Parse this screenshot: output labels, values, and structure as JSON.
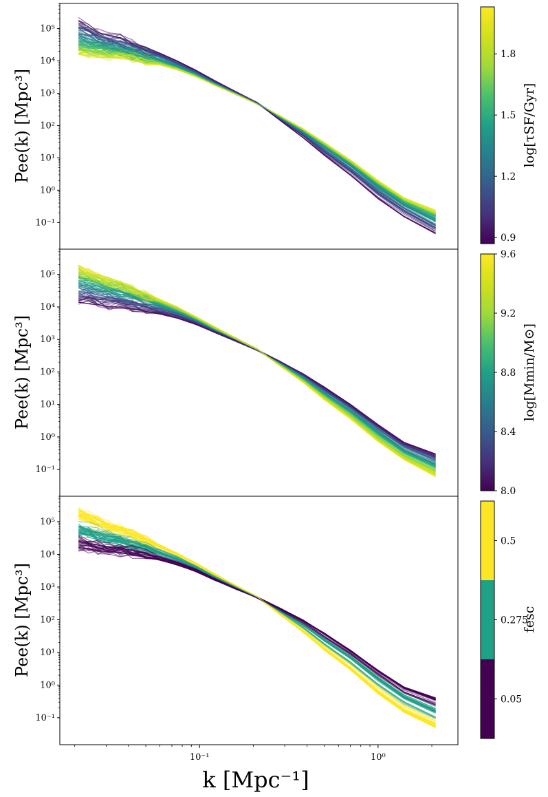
{
  "chart_data": {
    "type": "line",
    "x_axis": {
      "label": "k [Mpc⁻¹]",
      "scale": "log",
      "lim": [
        0.0165,
        2.8
      ],
      "ticks": [
        {
          "value": 0.1,
          "label": "10⁻¹"
        },
        {
          "value": 1.0,
          "label": "10⁰"
        }
      ]
    },
    "y_axis": {
      "label": "Pee(k) [Mpc³]",
      "scale": "log",
      "lim": [
        0.015,
        600000
      ],
      "ticks": [
        {
          "value": 0.1,
          "label": "10⁻¹"
        },
        {
          "value": 1,
          "label": "10⁰"
        },
        {
          "value": 10,
          "label": "10¹"
        },
        {
          "value": 100,
          "label": "10²"
        },
        {
          "value": 1000,
          "label": "10³"
        },
        {
          "value": 10000,
          "label": "10⁴"
        },
        {
          "value": 100000,
          "label": "10⁵"
        }
      ]
    },
    "k_values": [
      0.021,
      0.024,
      0.027,
      0.031,
      0.036,
      0.042,
      0.05,
      0.06,
      0.075,
      0.095,
      0.12,
      0.16,
      0.21,
      0.28,
      0.38,
      0.5,
      0.7,
      1.0,
      1.4,
      2.1
    ],
    "panels": [
      {
        "name": "tau-sf",
        "colorbar": {
          "label": "log[τSF/Gyr]",
          "type": "continuous",
          "range": [
            0.87,
            2.03
          ],
          "ticks": [
            {
              "value": 0.9,
              "label": "0.9"
            },
            {
              "value": 1.2,
              "label": "1.2"
            },
            {
              "value": 1.5,
              "label": "1.5"
            },
            {
              "value": 1.8,
              "label": "1.8"
            }
          ]
        },
        "series": [
          {
            "name": "logτSF=0.87",
            "cval": 0.87,
            "values": [
              180000,
              110000,
              75000,
              62000,
              52000,
              36000,
              26000,
              17000,
              9800,
              5100,
              2500,
              1100,
              510,
              150,
              42,
              12,
              2.9,
              0.55,
              0.15,
              0.045
            ]
          },
          {
            "name": "logτSF=1.10",
            "cval": 1.1,
            "values": [
              110000,
              80000,
              60000,
              48000,
              40000,
              29000,
              21000,
              14500,
              8700,
              4700,
              2350,
              1060,
              505,
              165,
              52,
              16,
              4.2,
              0.85,
              0.24,
              0.07
            ]
          },
          {
            "name": "logτSF=1.35",
            "cval": 1.35,
            "values": [
              60000,
              48000,
              40000,
              32000,
              27000,
              21000,
              16000,
              11500,
              7300,
              4100,
              2150,
              1010,
              495,
              180,
              62,
              21,
              5.8,
              1.25,
              0.35,
              0.11
            ]
          },
          {
            "name": "logτSF=1.55",
            "cval": 1.55,
            "values": [
              32000,
              29000,
              26000,
              22000,
              20000,
              16000,
              12500,
              9400,
              6300,
              3700,
              2000,
              970,
              485,
              190,
              70,
              25,
              7.2,
              1.6,
              0.45,
              0.16
            ]
          },
          {
            "name": "logτSF=1.80",
            "cval": 1.8,
            "values": [
              22000,
              20000,
              18500,
              16500,
              15500,
              13000,
              10500,
              8200,
              5700,
              3450,
              1900,
              950,
              480,
              195,
              74,
              27,
              7.8,
              1.75,
              0.5,
              0.19
            ]
          },
          {
            "name": "logτSF=2.00",
            "cval": 2.0,
            "values": [
              16000,
              15000,
              14000,
              12800,
              12500,
              11000,
              9300,
              7500,
              5400,
              3300,
              1850,
              940,
              478,
              205,
              80,
              30,
              8.6,
              2.0,
              0.58,
              0.24
            ]
          }
        ]
      },
      {
        "name": "m-min",
        "colorbar": {
          "label": "log[Mmin/M⊙]",
          "type": "continuous",
          "range": [
            8.0,
            9.6
          ],
          "ticks": [
            {
              "value": 8.0,
              "label": "8.0"
            },
            {
              "value": 8.4,
              "label": "8.4"
            },
            {
              "value": 8.8,
              "label": "8.8"
            },
            {
              "value": 9.2,
              "label": "9.2"
            },
            {
              "value": 9.6,
              "label": "9.6"
            }
          ]
        },
        "series": [
          {
            "name": "logMmin=8.0",
            "cval": 8.0,
            "values": [
              14000,
              12500,
              11500,
              10500,
              9800,
              8600,
              7300,
              6000,
              4500,
              2900,
              1700,
              880,
              470,
              215,
              88,
              34,
              10,
              2.4,
              0.68,
              0.3
            ]
          },
          {
            "name": "logMmin=8.4",
            "cval": 8.4,
            "values": [
              30000,
              27000,
              24000,
              20000,
              17500,
              14500,
              11500,
              8800,
              6100,
              3650,
              1950,
              950,
              480,
              200,
              76,
              27,
              7.9,
              1.8,
              0.5,
              0.2
            ]
          },
          {
            "name": "logMmin=8.8",
            "cval": 8.8,
            "values": [
              65000,
              52000,
              43000,
              35000,
              29000,
              22000,
              16500,
              11800,
              7500,
              4200,
              2150,
              1000,
              490,
              185,
              64,
              21,
              6.0,
              1.3,
              0.36,
              0.13
            ]
          },
          {
            "name": "logMmin=9.2",
            "cval": 9.2,
            "values": [
              110000,
              85000,
              65000,
              50000,
              41000,
              30000,
              21500,
              14500,
              8800,
              4700,
              2350,
              1050,
              500,
              170,
              55,
              17,
              4.6,
              0.95,
              0.26,
              0.09
            ]
          },
          {
            "name": "logMmin=9.55",
            "cval": 9.55,
            "values": [
              170000,
              120000,
              85000,
              65000,
              53000,
              38000,
              26000,
              17000,
              9900,
              5100,
              2500,
              1090,
              505,
              160,
              48,
              14,
              3.6,
              0.72,
              0.2,
              0.06
            ]
          }
        ]
      },
      {
        "name": "f-esc",
        "colorbar": {
          "label": "fesc",
          "type": "discrete",
          "range": [
            0.05,
            0.5
          ],
          "bins": [
            0.05,
            0.275,
            0.5
          ],
          "ticks": [
            {
              "value": 0.05,
              "label": "0.05"
            },
            {
              "value": 0.275,
              "label": "0.275"
            },
            {
              "value": 0.5,
              "label": "0.5"
            }
          ]
        },
        "series": [
          {
            "name": "fesc=0.05-a",
            "cval": 0.05,
            "values": [
              25000,
              22000,
              19000,
              17000,
              15500,
              13000,
              10500,
              8200,
              5800,
              3500,
              1900,
              960,
              500,
              230,
              97,
              38,
              11.5,
              2.8,
              0.85,
              0.4
            ]
          },
          {
            "name": "fesc=0.05-b",
            "cval": 0.05,
            "values": [
              16000,
              14500,
              13000,
              12000,
              11200,
              9800,
              8200,
              6600,
              4800,
              3000,
              1700,
              880,
              470,
              222,
              94,
              37,
              11,
              2.7,
              0.8,
              0.35
            ]
          },
          {
            "name": "fesc=0.275-a",
            "cval": 0.275,
            "values": [
              70000,
              55000,
              45000,
              36000,
              30000,
              23000,
              17000,
              12000,
              7600,
              4200,
              2150,
              1000,
              485,
              190,
              68,
              23,
              6.5,
              1.45,
              0.4,
              0.15
            ]
          },
          {
            "name": "fesc=0.275-b",
            "cval": 0.275,
            "values": [
              45000,
              38000,
              32000,
              27000,
              23500,
              18500,
              14500,
              10500,
              6900,
              3900,
              2050,
              980,
              482,
              195,
              72,
              25,
              7.3,
              1.65,
              0.46,
              0.17
            ]
          },
          {
            "name": "fesc=0.5-a",
            "cval": 0.5,
            "values": [
              220000,
              160000,
              115000,
              85000,
              65000,
              45000,
              30000,
              19000,
              10800,
              5400,
              2600,
              1100,
              500,
              150,
              42,
              12,
              3.0,
              0.55,
              0.15,
              0.05
            ]
          },
          {
            "name": "fesc=0.5-b",
            "cval": 0.5,
            "values": [
              150000,
              115000,
              90000,
              70000,
              56000,
              40000,
              27000,
              17500,
              10200,
              5200,
              2550,
              1090,
              500,
              155,
              45,
              13,
              3.3,
              0.65,
              0.18,
              0.065
            ]
          }
        ]
      }
    ]
  }
}
